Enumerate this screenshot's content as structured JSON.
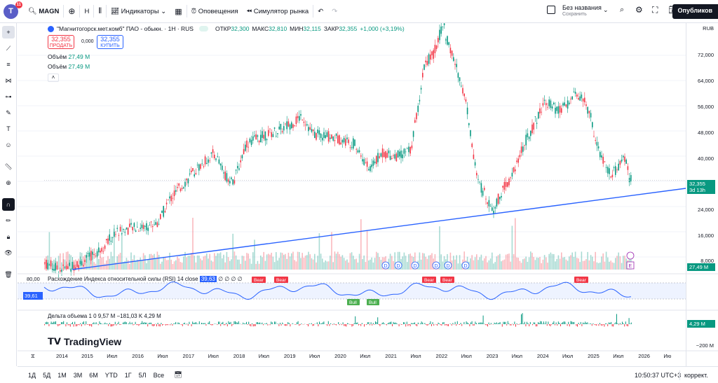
{
  "toolbar": {
    "avatar_letter": "T",
    "avatar_badge": "11",
    "symbol": "MAGN",
    "interval": "H",
    "indicators": "Индикаторы",
    "alerts": "Оповещения",
    "simulator": "Симулятор рынка",
    "layout_title": "Без названия",
    "layout_subtitle": "Сохранить",
    "publish": "Опубликов"
  },
  "legend": {
    "title": "\"Магнитогорск.мет.комб\" ПАО - обыкн. · 1Н · RUS",
    "o_label": "ОТКР",
    "o_val": "32,300",
    "h_label": "МАКС",
    "h_val": "32,810",
    "l_label": "МИН",
    "l_val": "32,115",
    "c_label": "ЗАКР",
    "c_val": "32,355",
    "chg": "+1,000 (+3,19%)",
    "sell_price": "32,355",
    "sell_label": "ПРОДАТЬ",
    "spread": "0,000",
    "buy_price": "32,355",
    "buy_label": "КУПИТЬ",
    "vol1_label": "Объём",
    "vol1_val": "27,49 M",
    "vol2_label": "Объём",
    "vol2_val": "27,49 M"
  },
  "price_scale": {
    "currency": "RUB",
    "ticks": [
      "72,000",
      "64,000",
      "56,000",
      "48,000",
      "40,000",
      "32,000",
      "24,000",
      "16,000",
      "8,000"
    ],
    "last_price": "32,355",
    "countdown": "3d 13h",
    "vol_badge": "27,49 M"
  },
  "rsi": {
    "title": "Расхождение Индекса относительной силы (RSI) 14 close",
    "value": "39,63",
    "extra": "∅ ∅ ∅ ∅",
    "level_top": "80,00",
    "current": "39,61",
    "bear_label": "Bear",
    "bull_label": "Bull"
  },
  "delta": {
    "title": "Дельта объема 1 0 9,57 M −181,03 K 4,29 M",
    "badge": "4,29 M",
    "low_label": "−200 M"
  },
  "xaxis": {
    "labels": [
      "2014",
      "2015",
      "Июл",
      "2016",
      "Июл",
      "2017",
      "Июл",
      "2018",
      "Июл",
      "2019",
      "Июл",
      "2020",
      "Июл",
      "2021",
      "Июл",
      "2022",
      "Июл",
      "2023",
      "Июл",
      "2024",
      "Июл",
      "2025",
      "Июл",
      "2026",
      "Ию"
    ]
  },
  "bottom": {
    "ranges": [
      "1Д",
      "5Д",
      "1М",
      "3М",
      "6М",
      "YTD",
      "1Г",
      "5Л",
      "Все"
    ],
    "time": "10:50:37 UTC+3",
    "mode": "коррект."
  },
  "brand": "TradingView",
  "events": {
    "dividend": "D",
    "earnings": "E"
  },
  "colors": {
    "up": "#089981",
    "down": "#f23645",
    "trend": "#2962ff",
    "rsi": "#2962ff"
  }
}
